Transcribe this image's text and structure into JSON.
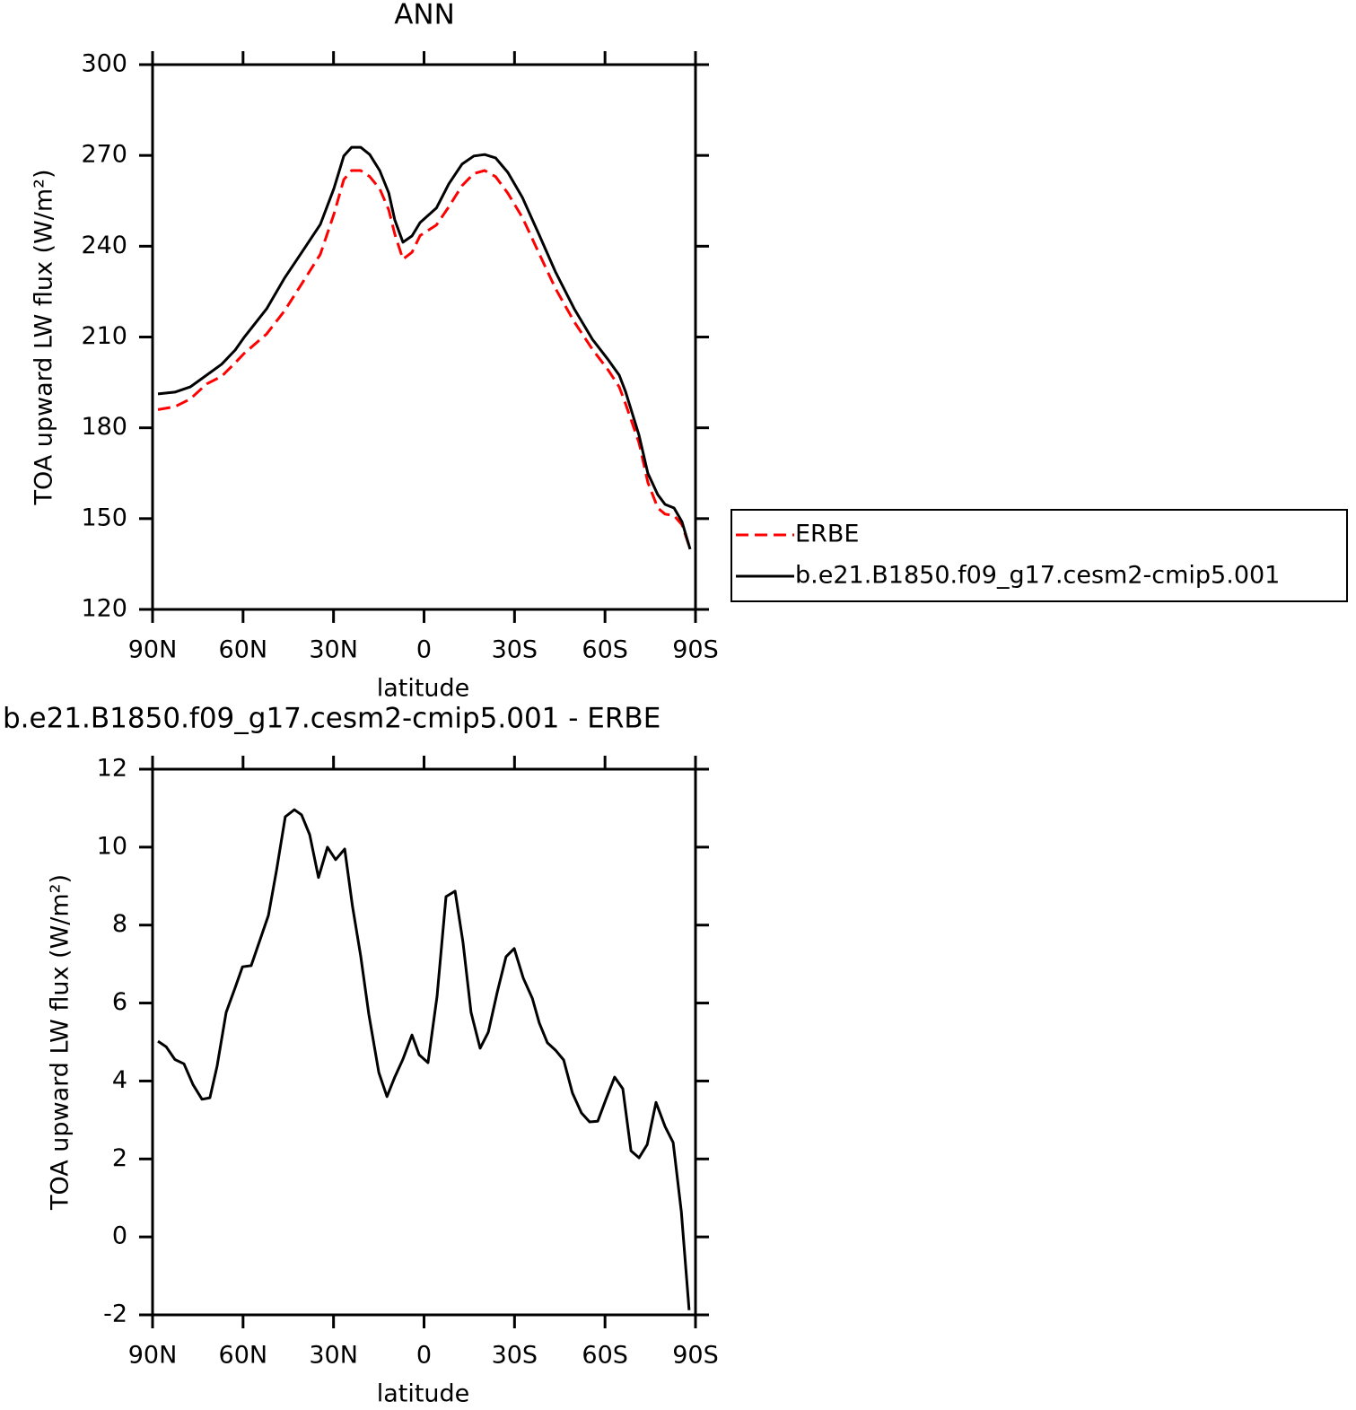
{
  "chart_data": [
    {
      "type": "line",
      "title": "ANN",
      "xlabel": "latitude",
      "ylabel": "TOA upward LW flux (W/m²)",
      "xlim": [
        90,
        -90
      ],
      "ylim": [
        120,
        300
      ],
      "xticks": [
        {
          "value": 90,
          "label": "90N"
        },
        {
          "value": 60,
          "label": "60N"
        },
        {
          "value": 30,
          "label": "30N"
        },
        0,
        {
          "value": -30,
          "label": "30S"
        },
        {
          "value": -60,
          "label": "60S"
        },
        {
          "value": -90,
          "label": "90S"
        }
      ],
      "yticks": [
        120,
        150,
        180,
        210,
        240,
        270,
        300
      ],
      "legend": "right",
      "x": [
        88.2,
        82.6,
        77.5,
        72.1,
        67.1,
        62.6,
        59.7,
        52.2,
        46.3,
        40.9,
        34.4,
        29.9,
        26.6,
        24,
        21,
        18,
        14.7,
        11.7,
        9.7,
        7,
        4,
        1.3,
        -4.1,
        -8.2,
        -12.6,
        -16.5,
        -20.1,
        -23.7,
        -27.8,
        -32.6,
        -38.2,
        -43.6,
        -49.8,
        -55.8,
        -61.1,
        -64.7,
        -66.8,
        -71.3,
        -74.2,
        -77.5,
        -79.9,
        -82.9,
        -85.5,
        -88.2
      ],
      "series": [
        {
          "name": "ERBE",
          "color": "#ff0000",
          "line_style": "dashed",
          "values": [
            186,
            187,
            189.5,
            194.5,
            197,
            201.5,
            204.5,
            211,
            218.6,
            227,
            237.3,
            250.5,
            262,
            265,
            265,
            263,
            259,
            252,
            244,
            235.7,
            238,
            243.5,
            247,
            253,
            260,
            264,
            265,
            263,
            257.5,
            249.5,
            237.5,
            226,
            215,
            206,
            199,
            193.5,
            188,
            175,
            162,
            153.5,
            151.5,
            151,
            148,
            140
          ]
        },
        {
          "name": "b.e21.B1850.f09_g17.cesm2-cmip5.001",
          "color": "#000000",
          "line_style": "solid",
          "values": [
            191.2,
            191.8,
            193.5,
            197.4,
            201,
            205.7,
            209.8,
            219.3,
            229.4,
            237.4,
            247.2,
            259,
            269.8,
            272.7,
            272.7,
            270.3,
            265,
            257.6,
            248.7,
            241.3,
            243.4,
            247.8,
            252.6,
            260.6,
            267.1,
            269.8,
            270.3,
            269.2,
            264.4,
            256.1,
            243.7,
            231.5,
            219.3,
            209.3,
            202.4,
            197.4,
            192,
            177.5,
            165,
            157.9,
            154.7,
            153.5,
            149,
            139.9
          ]
        }
      ]
    },
    {
      "type": "line",
      "title": "b.e21.B1850.f09_g17.cesm2-cmip5.001 - ERBE",
      "xlabel": "latitude",
      "ylabel": "TOA upward LW flux (W/m²)",
      "xlim": [
        90,
        -90
      ],
      "ylim": [
        -2,
        12
      ],
      "xticks": [
        {
          "value": 90,
          "label": "90N"
        },
        {
          "value": 60,
          "label": "60N"
        },
        {
          "value": 30,
          "label": "30N"
        },
        0,
        {
          "value": -30,
          "label": "30S"
        },
        {
          "value": -60,
          "label": "60S"
        },
        {
          "value": -90,
          "label": "90S"
        }
      ],
      "yticks": [
        -2,
        0,
        2,
        4,
        6,
        8,
        10,
        12
      ],
      "color": "#000000",
      "x": [
        88.2,
        85.5,
        82.6,
        79.6,
        76.6,
        73.6,
        71,
        68.6,
        65.6,
        62.6,
        60.2,
        57.3,
        51.6,
        48.9,
        46,
        43,
        40.6,
        37.9,
        35,
        32,
        29.3,
        26.3,
        23.7,
        21,
        18.3,
        15,
        12.3,
        9.7,
        7,
        4,
        1.6,
        -1.3,
        -4.3,
        -7.3,
        -10.3,
        -12.9,
        -15.6,
        -18.6,
        -21.3,
        -24.3,
        -27.2,
        -29.9,
        -32.9,
        -35.9,
        -38.2,
        -40.9,
        -43.6,
        -46.3,
        -49.2,
        -52.2,
        -54.9,
        -57.6,
        -60.3,
        -63.2,
        -65.9,
        -68.6,
        -71.3,
        -74,
        -76.9,
        -79.9,
        -82.6,
        -85.3,
        -87.9
      ],
      "values": [
        5.02,
        4.88,
        4.55,
        4.44,
        3.91,
        3.53,
        3.57,
        4.38,
        5.76,
        6.4,
        6.93,
        6.96,
        8.25,
        9.4,
        10.78,
        10.96,
        10.83,
        10.32,
        9.22,
        10,
        9.68,
        9.95,
        8.48,
        7.21,
        5.71,
        4.22,
        3.6,
        4.1,
        4.56,
        5.18,
        4.67,
        4.47,
        6.17,
        8.73,
        8.87,
        7.56,
        5.76,
        4.84,
        5.25,
        6.29,
        7.19,
        7.4,
        6.64,
        6.12,
        5.49,
        4.98,
        4.79,
        4.54,
        3.69,
        3.18,
        2.95,
        2.97,
        3.53,
        4.1,
        3.8,
        2.21,
        2.03,
        2.37,
        3.45,
        2.83,
        2.42,
        0.65,
        -1.88
      ]
    }
  ]
}
